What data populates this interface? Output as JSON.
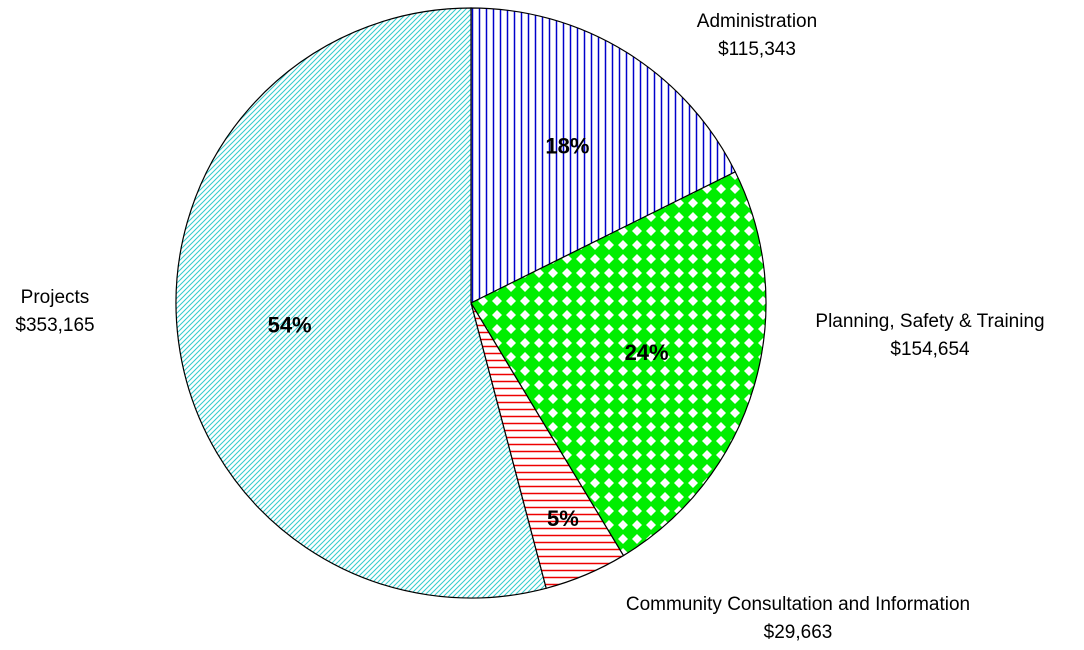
{
  "chart_data": {
    "type": "pie",
    "categories": [
      "Administration",
      "Planning, Safety & Training",
      "Community Consultation and Information",
      "Projects"
    ],
    "values": [
      115343,
      154654,
      29663,
      353165
    ],
    "value_labels": [
      "$115,343",
      "$154,654",
      "$29,663",
      "$353,165"
    ],
    "percent_labels": [
      "18%",
      "24%",
      "5%",
      "54%"
    ],
    "colors": [
      "#0000cc",
      "#00ee00",
      "#ee0000",
      "#33cccc"
    ],
    "patterns": [
      "vertical",
      "diamond",
      "horizontal",
      "diagonal"
    ]
  }
}
